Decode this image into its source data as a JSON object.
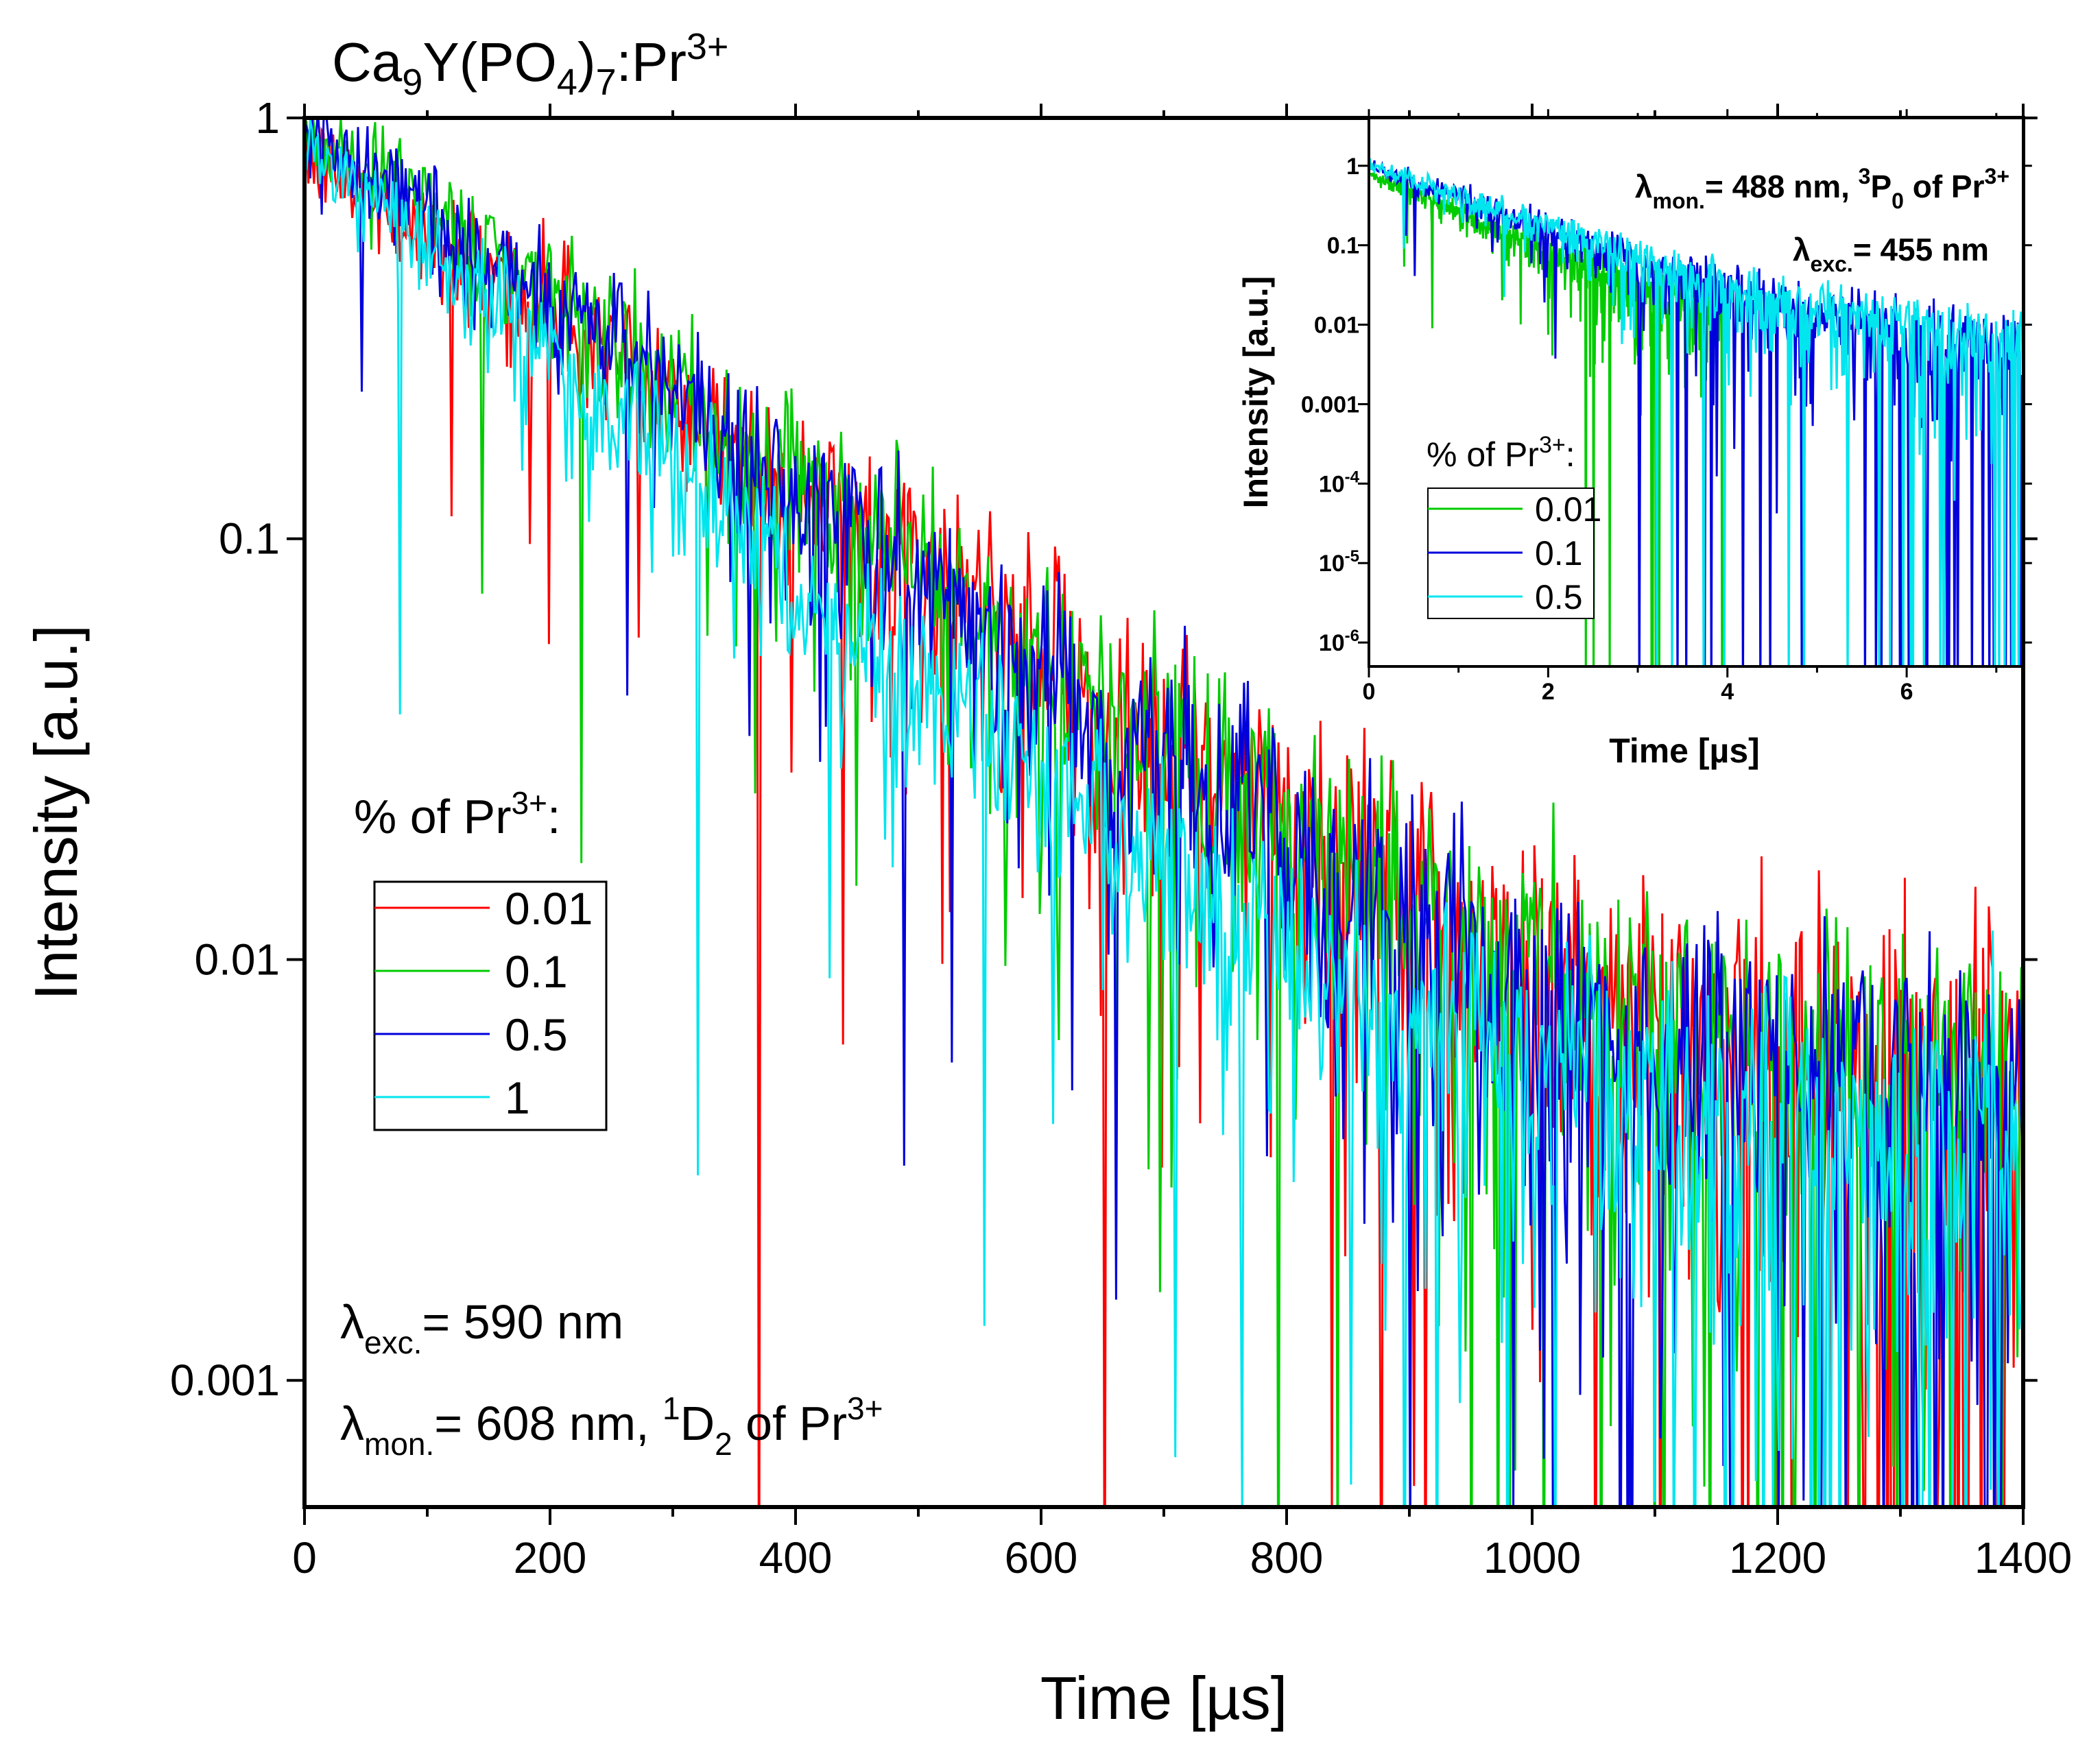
{
  "chart_data": [
    {
      "type": "line",
      "title_parts": [
        "Ca",
        "9",
        "Y(PO",
        "4",
        ")",
        "7",
        ":Pr",
        "3+"
      ],
      "xlabel": "Time [µs]",
      "ylabel": "Intensity [a.u.]",
      "xlim": [
        0,
        1400
      ],
      "ylim": [
        0.0005,
        1
      ],
      "yscale": "log",
      "x_ticks": [
        0,
        200,
        400,
        600,
        800,
        1000,
        1200,
        1400
      ],
      "x_tick_labels": [
        "0",
        "200",
        "400",
        "600",
        "800",
        "1000",
        "1200",
        "1400"
      ],
      "y_ticks": [
        0.001,
        0.01,
        0.1,
        1
      ],
      "y_tick_labels": [
        "0.001",
        "0.01",
        "0.1",
        "1"
      ],
      "legend_title_parts": [
        "% of Pr",
        "3+",
        ":"
      ],
      "legend_position": "center-left",
      "annotation_exc_parts": [
        "λ",
        "exc.",
        "= 590 nm"
      ],
      "annotation_mon_parts": [
        "λ",
        "mon.",
        "= 608 nm, ",
        "1",
        "D",
        "2",
        " of Pr",
        "3+"
      ],
      "series": [
        {
          "name": "0.01",
          "color": "#ff0000",
          "x": [
            0,
            100,
            200,
            300,
            400,
            500,
            600,
            700,
            800,
            900,
            1000,
            1100,
            1200,
            1300,
            1400
          ],
          "y": [
            0.82,
            0.55,
            0.36,
            0.22,
            0.135,
            0.084,
            0.052,
            0.033,
            0.021,
            0.0135,
            0.0093,
            0.0072,
            0.006,
            0.0054,
            0.005
          ]
        },
        {
          "name": "0.1",
          "color": "#00cc00",
          "x": [
            0,
            100,
            200,
            300,
            400,
            500,
            600,
            700,
            800,
            900,
            1000,
            1100,
            1200,
            1300,
            1400
          ],
          "y": [
            0.92,
            0.61,
            0.38,
            0.23,
            0.14,
            0.086,
            0.052,
            0.032,
            0.02,
            0.0128,
            0.0087,
            0.0067,
            0.0056,
            0.005,
            0.0046
          ]
        },
        {
          "name": "0.5",
          "color": "#0000dd",
          "x": [
            0,
            100,
            200,
            300,
            400,
            500,
            600,
            700,
            800,
            900,
            1000,
            1100,
            1200,
            1300,
            1400
          ],
          "y": [
            0.95,
            0.6,
            0.37,
            0.22,
            0.13,
            0.078,
            0.047,
            0.029,
            0.018,
            0.0115,
            0.0078,
            0.0058,
            0.0048,
            0.0043,
            0.004
          ]
        },
        {
          "name": "1",
          "color": "#00e5ee",
          "x": [
            0,
            100,
            200,
            300,
            400,
            500,
            600,
            700,
            800,
            900,
            1000,
            1100,
            1200,
            1300,
            1400
          ],
          "y": [
            0.85,
            0.48,
            0.27,
            0.15,
            0.082,
            0.046,
            0.026,
            0.0155,
            0.0098,
            0.0067,
            0.0052,
            0.0044,
            0.004,
            0.0037,
            0.0035
          ]
        }
      ]
    },
    {
      "type": "line",
      "inset": true,
      "xlabel": "Time [µs]",
      "ylabel": "Intensity [a.u.]",
      "xlim": [
        0,
        7.3
      ],
      "ylim": [
        5e-07,
        4
      ],
      "yscale": "log",
      "x_ticks": [
        0,
        2,
        4,
        6
      ],
      "x_tick_labels": [
        "0",
        "2",
        "4",
        "6"
      ],
      "y_ticks": [
        1,
        0.1,
        0.01,
        0.001,
        0.0001,
        1e-05,
        1e-06
      ],
      "y_tick_label_parts": [
        [
          "1"
        ],
        [
          "0.1"
        ],
        [
          "0.01"
        ],
        [
          "0.001"
        ],
        [
          "10",
          "-4"
        ],
        [
          "10",
          "-5"
        ],
        [
          "10",
          "-6"
        ]
      ],
      "legend_title_parts": [
        "% of Pr",
        "3+",
        ":"
      ],
      "annotation_mon_parts": [
        "λ",
        "mon.",
        "= 488 nm, ",
        "3",
        "P",
        "0",
        " of Pr",
        "3+"
      ],
      "annotation_exc_parts": [
        "λ",
        "exc.",
        "= 455 nm"
      ],
      "series": [
        {
          "name": "0.01",
          "color": "#00cc00",
          "x": [
            0,
            0.5,
            1.0,
            1.5,
            2.0,
            2.5,
            3.0,
            3.5,
            4.0
          ],
          "y": [
            0.8,
            0.45,
            0.25,
            0.14,
            0.08,
            0.05,
            0.032,
            0.022,
            0.015
          ]
        },
        {
          "name": "0.1",
          "color": "#0000dd",
          "x": [
            0,
            1,
            2,
            3,
            4,
            5,
            6,
            7,
            7.3
          ],
          "y": [
            1.0,
            0.4,
            0.15,
            0.06,
            0.025,
            0.012,
            0.007,
            0.005,
            0.0045
          ]
        },
        {
          "name": "0.5",
          "color": "#00e5ee",
          "x": [
            0,
            1,
            2,
            3,
            4,
            5,
            6,
            7,
            7.3
          ],
          "y": [
            1.0,
            0.42,
            0.16,
            0.065,
            0.028,
            0.014,
            0.009,
            0.006,
            0.0055
          ]
        }
      ]
    }
  ]
}
